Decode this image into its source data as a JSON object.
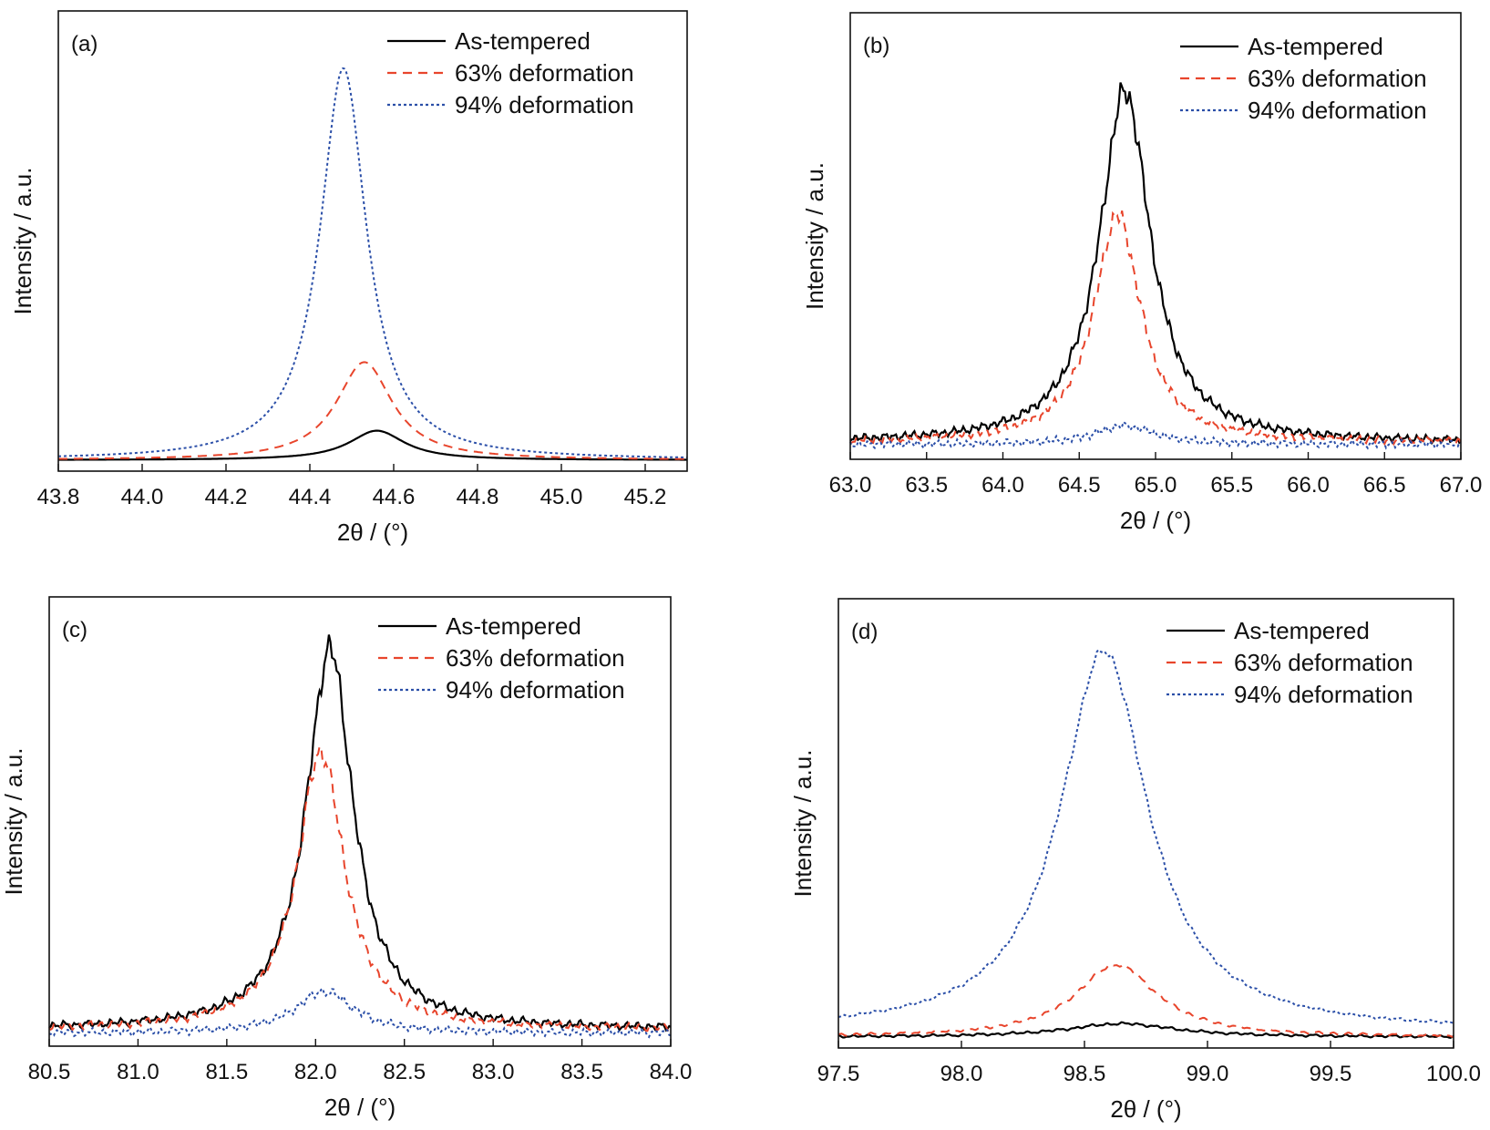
{
  "chart_data": [
    {
      "panel": "(a)",
      "type": "line",
      "xlabel": "2θ / (°)",
      "ylabel": "Intensity / a.u.",
      "xlim": [
        43.8,
        45.3
      ],
      "ylim": [
        0,
        1.0
      ],
      "xticks": [
        "43.8",
        "44.0",
        "44.2",
        "44.4",
        "44.6",
        "44.8",
        "45.0",
        "45.2"
      ],
      "legend": "top-right",
      "noise": 0,
      "series": [
        {
          "name": "As-tempered",
          "style": "solid",
          "color": "#000000",
          "center": 44.56,
          "width": 0.12,
          "peak": 0.075,
          "baseline": 0.005
        },
        {
          "name": "63% deformation",
          "style": "dashed",
          "color": "#e8452c",
          "center": 44.53,
          "width": 0.12,
          "peak": 0.25,
          "baseline": 0.005
        },
        {
          "name": "94% deformation",
          "style": "dotted",
          "color": "#2b4fa8",
          "center": 44.48,
          "width": 0.1,
          "peak": 1.0,
          "baseline": 0.005
        }
      ]
    },
    {
      "panel": "(b)",
      "type": "line",
      "xlabel": "2θ / (°)",
      "ylabel": "Intensity / a.u.",
      "xlim": [
        63.0,
        67.0
      ],
      "ylim": [
        0,
        1.0
      ],
      "xticks": [
        "63.0",
        "63.5",
        "64.0",
        "64.5",
        "65.0",
        "65.5",
        "66.0",
        "66.5",
        "67.0"
      ],
      "legend": "top-right",
      "noise": 0.012,
      "series": [
        {
          "name": "As-tempered",
          "style": "solid",
          "color": "#000000",
          "center": 64.8,
          "width": 0.3,
          "peak": 0.93,
          "baseline": 0.02
        },
        {
          "name": "63% deformation",
          "style": "dashed",
          "color": "#e8452c",
          "center": 64.75,
          "width": 0.28,
          "peak": 0.6,
          "baseline": 0.02
        },
        {
          "name": "94% deformation",
          "style": "dotted",
          "color": "#2b4fa8",
          "center": 64.8,
          "width": 0.35,
          "peak": 0.05,
          "baseline": 0.015
        }
      ]
    },
    {
      "panel": "(c)",
      "type": "line",
      "xlabel": "2θ / (°)",
      "ylabel": "Intensity / a.u.",
      "xlim": [
        80.5,
        84.0
      ],
      "ylim": [
        0,
        1.0
      ],
      "xticks": [
        "80.5",
        "81.0",
        "81.5",
        "82.0",
        "82.5",
        "83.0",
        "83.5",
        "84.0"
      ],
      "legend": "top-right",
      "noise": 0.012,
      "series": [
        {
          "name": "As-tempered",
          "style": "solid",
          "color": "#000000",
          "center": 82.08,
          "width": 0.24,
          "peak": 1.0,
          "baseline": 0.02
        },
        {
          "name": "63% deformation",
          "style": "dashed",
          "color": "#e8452c",
          "center": 82.03,
          "width": 0.24,
          "peak": 0.73,
          "baseline": 0.02
        },
        {
          "name": "94% deformation",
          "style": "dotted",
          "color": "#2b4fa8",
          "center": 82.05,
          "width": 0.3,
          "peak": 0.11,
          "baseline": 0.01
        }
      ]
    },
    {
      "panel": "(d)",
      "type": "line",
      "xlabel": "2θ / (°)",
      "ylabel": "Intensity / a.u.",
      "xlim": [
        97.5,
        100.0
      ],
      "ylim": [
        0,
        1.0
      ],
      "xticks": [
        "97.5",
        "98.0",
        "98.5",
        "99.0",
        "99.5",
        "100.0"
      ],
      "legend": "top-right",
      "noise": 0.004,
      "series": [
        {
          "name": "As-tempered",
          "style": "solid",
          "color": "#000000",
          "center": 98.65,
          "width": 0.4,
          "peak": 0.035,
          "baseline": 0.005
        },
        {
          "name": "63% deformation",
          "style": "dashed",
          "color": "#e8452c",
          "center": 98.63,
          "width": 0.3,
          "peak": 0.19,
          "baseline": 0.005
        },
        {
          "name": "94% deformation",
          "style": "dotted",
          "color": "#2b4fa8",
          "center": 98.58,
          "width": 0.32,
          "peak": 1.0,
          "baseline": 0.02
        }
      ]
    }
  ]
}
